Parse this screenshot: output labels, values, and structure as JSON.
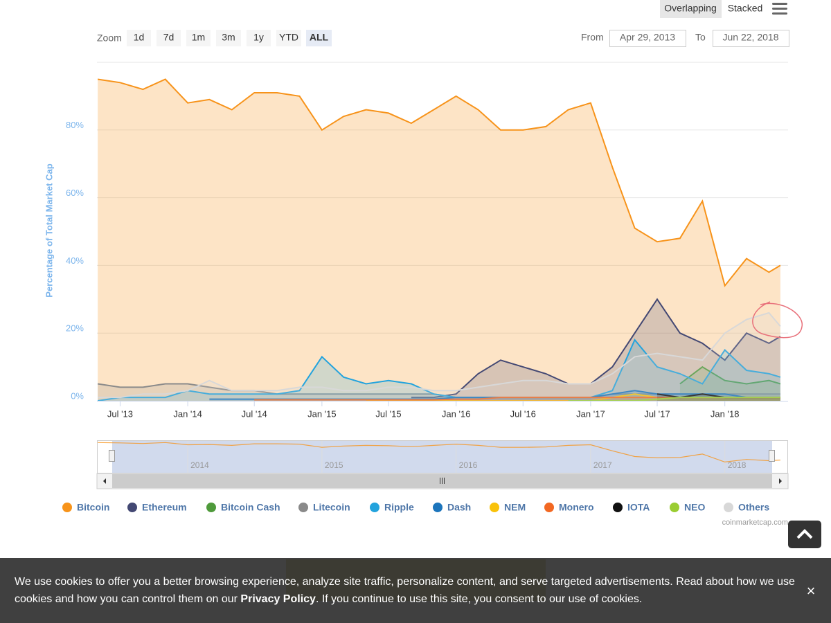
{
  "ui": {
    "view_modes": [
      "Overlapping",
      "Stacked"
    ],
    "zoom_label": "Zoom",
    "zoom_buttons": [
      "1d",
      "7d",
      "1m",
      "3m",
      "1y",
      "YTD",
      "ALL"
    ],
    "from_label": "From",
    "from_value": "Apr 29, 2013",
    "to_label": "To",
    "to_value": "Jun 22, 2018",
    "credit": "coinmarketcap.com",
    "cookie_text_1": "We use cookies to offer you a better browsing experience, analyze site traffic, personalize content, and serve targeted advertisements. Read about how we use",
    "cookie_text_2": "cookies and how you can control them on our ",
    "cookie_link": "Privacy Policy",
    "cookie_text_3": ". If you continue to use this site, you consent to our use of cookies.",
    "close": "×"
  },
  "chart_data": {
    "type": "area",
    "y_label": "Percentage of Total Market Cap",
    "x": [
      "2013-05",
      "2013-07",
      "2013-09",
      "2013-11",
      "2014-01",
      "2014-03",
      "2014-05",
      "2014-07",
      "2014-09",
      "2014-11",
      "2015-01",
      "2015-03",
      "2015-05",
      "2015-07",
      "2015-09",
      "2015-11",
      "2016-01",
      "2016-03",
      "2016-05",
      "2016-07",
      "2016-09",
      "2016-11",
      "2017-01",
      "2017-03",
      "2017-05",
      "2017-07",
      "2017-09",
      "2017-11",
      "2018-01",
      "2018-03",
      "2018-05",
      "2018-06"
    ],
    "xlim": [
      "2013-04-29",
      "2018-06-22"
    ],
    "xticks": [
      {
        "value": "2013-07",
        "label": "Jul '13"
      },
      {
        "value": "2014-01",
        "label": "Jan '14"
      },
      {
        "value": "2014-07",
        "label": "Jul '14"
      },
      {
        "value": "2015-01",
        "label": "Jan '15"
      },
      {
        "value": "2015-07",
        "label": "Jul '15"
      },
      {
        "value": "2016-01",
        "label": "Jan '16"
      },
      {
        "value": "2016-07",
        "label": "Jul '16"
      },
      {
        "value": "2017-01",
        "label": "Jan '17"
      },
      {
        "value": "2017-07",
        "label": "Jul '17"
      },
      {
        "value": "2018-01",
        "label": "Jan '18"
      }
    ],
    "ylim": [
      0,
      100
    ],
    "yticks": [
      {
        "value": 0,
        "label": "0%"
      },
      {
        "value": 20,
        "label": "20%"
      },
      {
        "value": 40,
        "label": "40%"
      },
      {
        "value": 60,
        "label": "60%"
      },
      {
        "value": 80,
        "label": "80%"
      }
    ],
    "grid": true,
    "navigator_xticks": [
      {
        "value": "2014-01",
        "label": "2014"
      },
      {
        "value": "2015-01",
        "label": "2015"
      },
      {
        "value": "2016-01",
        "label": "2016"
      },
      {
        "value": "2017-01",
        "label": "2017"
      },
      {
        "value": "2018-01",
        "label": "2018"
      }
    ],
    "series": [
      {
        "name": "Bitcoin",
        "color": "#f7931a",
        "values": [
          95,
          94,
          92,
          95,
          88,
          89,
          86,
          91,
          91,
          90,
          80,
          84,
          86,
          85,
          82,
          86,
          90,
          86,
          80,
          80,
          81,
          86,
          88,
          69,
          51,
          47,
          48,
          59,
          34,
          42,
          38,
          40
        ]
      },
      {
        "name": "Ethereum",
        "color": "#434873",
        "values": [
          null,
          null,
          null,
          null,
          null,
          null,
          null,
          null,
          null,
          null,
          null,
          null,
          null,
          null,
          1,
          1,
          2,
          8,
          12,
          10,
          8,
          5,
          5,
          10,
          20,
          30,
          20,
          17,
          12,
          20,
          17,
          19
        ]
      },
      {
        "name": "Bitcoin Cash",
        "color": "#4f9a3b",
        "values": [
          null,
          null,
          null,
          null,
          null,
          null,
          null,
          null,
          null,
          null,
          null,
          null,
          null,
          null,
          null,
          null,
          null,
          null,
          null,
          null,
          null,
          null,
          null,
          null,
          null,
          null,
          5,
          10,
          6,
          5,
          6,
          5
        ]
      },
      {
        "name": "Litecoin",
        "color": "#8a8a8a",
        "values": [
          5,
          4,
          4,
          5,
          5,
          4,
          3,
          3,
          2,
          2,
          2,
          2,
          2,
          2,
          2,
          2,
          1,
          1,
          1,
          1,
          1,
          1,
          1,
          2,
          2,
          2,
          2,
          2,
          2,
          2,
          2,
          2
        ]
      },
      {
        "name": "Ripple",
        "color": "#23a3dd",
        "values": [
          0,
          1,
          1,
          1,
          3,
          2,
          2,
          2,
          2,
          3,
          13,
          7,
          5,
          6,
          5,
          2,
          1,
          1,
          1,
          1,
          1,
          1,
          1,
          3,
          18,
          10,
          8,
          5,
          15,
          9,
          8,
          7
        ]
      },
      {
        "name": "Dash",
        "color": "#1c75bc",
        "values": [
          null,
          null,
          null,
          null,
          null,
          0.5,
          0.5,
          0.5,
          0.5,
          0.5,
          0.5,
          0.5,
          0.5,
          0.5,
          0.5,
          0.5,
          1,
          1,
          1,
          1,
          1,
          1,
          1,
          2,
          3,
          2,
          2,
          2,
          2,
          1,
          1,
          1
        ]
      },
      {
        "name": "NEM",
        "color": "#f9c20a",
        "values": [
          null,
          null,
          null,
          null,
          null,
          null,
          null,
          null,
          null,
          null,
          null,
          null,
          0,
          0,
          0,
          0,
          0,
          0,
          0,
          0,
          0,
          0,
          0,
          1,
          2,
          1,
          1,
          1,
          1,
          1,
          1,
          1
        ]
      },
      {
        "name": "Monero",
        "color": "#f26822",
        "values": [
          null,
          null,
          null,
          null,
          null,
          null,
          null,
          0.3,
          0.3,
          0.3,
          0.3,
          0.3,
          0.3,
          0.3,
          0.3,
          0.3,
          0.5,
          0.5,
          1,
          1,
          1,
          1,
          1,
          1,
          1,
          1,
          1,
          1,
          1,
          1,
          1,
          1
        ]
      },
      {
        "name": "IOTA",
        "color": "#111111",
        "values": [
          null,
          null,
          null,
          null,
          null,
          null,
          null,
          null,
          null,
          null,
          null,
          null,
          null,
          null,
          null,
          null,
          null,
          null,
          null,
          null,
          null,
          null,
          null,
          null,
          null,
          2,
          1,
          2,
          1,
          1,
          1,
          1
        ]
      },
      {
        "name": "NEO",
        "color": "#9acd32",
        "values": [
          null,
          null,
          null,
          null,
          null,
          null,
          null,
          null,
          null,
          null,
          null,
          null,
          null,
          null,
          null,
          null,
          null,
          null,
          null,
          null,
          null,
          0,
          0,
          0,
          0,
          0.5,
          1,
          1,
          1,
          1,
          1,
          1
        ]
      },
      {
        "name": "Others",
        "color": "#d8d8d8",
        "values": [
          1,
          1,
          2,
          2,
          3,
          6,
          3,
          3,
          3,
          4,
          4,
          3,
          3,
          4,
          4,
          3,
          3,
          4,
          5,
          6,
          6,
          5,
          5,
          8,
          13,
          14,
          13,
          12,
          20,
          24,
          26,
          22
        ]
      }
    ]
  }
}
